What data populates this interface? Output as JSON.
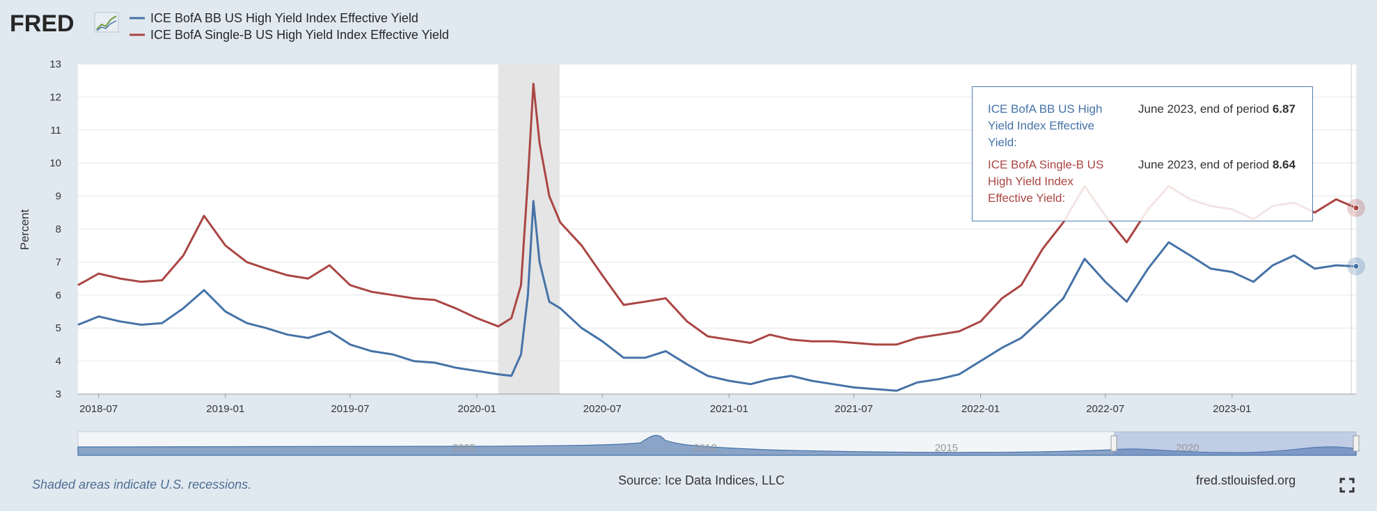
{
  "header": {
    "logo_text": "FRED",
    "logo_icon": "fred-graph-icon"
  },
  "tooltip": {
    "rows": [
      {
        "name": "ICE BofA BB US High Yield Index Effective Yield:",
        "date": "June 2023, end of period",
        "value": "6.87",
        "color": "#4572a7"
      },
      {
        "name": "ICE BofA Single-B US High Yield Index Effective Yield:",
        "date": "June 2023, end of period",
        "value": "8.64",
        "color": "#aa4643"
      }
    ]
  },
  "footer": {
    "recession_note": "Shaded areas indicate U.S. recessions.",
    "source": "Source: Ice Data Indices, LLC",
    "site": "fred.stlouisfed.org",
    "fullscreen_icon": "fullscreen-icon"
  },
  "colors": {
    "bb": "#4572a7",
    "single_b": "#aa4643",
    "recession": "#e5e5e5",
    "background": "#e1e9f0",
    "plot": "#ffffff"
  },
  "chart_data": {
    "type": "line",
    "ylabel": "Percent",
    "ylim": [
      3,
      13
    ],
    "yticks": [
      3,
      4,
      5,
      6,
      7,
      8,
      9,
      10,
      11,
      12,
      13
    ],
    "xlim": [
      "2018-06-01",
      "2023-06-30"
    ],
    "xticks": [
      "2018-07",
      "2019-01",
      "2019-07",
      "2020-01",
      "2020-07",
      "2021-01",
      "2021-07",
      "2022-01",
      "2022-07",
      "2023-01"
    ],
    "grid": true,
    "legend": "top-left",
    "recessions": [
      {
        "start": "2020-02-01",
        "end": "2020-04-30"
      }
    ],
    "navigator": {
      "ticks": [
        "2005",
        "2010",
        "2015",
        "2020"
      ],
      "xlim": [
        "1997-01-01",
        "2023-06-30"
      ],
      "selected": [
        "2018-06-01",
        "2023-06-30"
      ]
    },
    "x": [
      "2018-06-01",
      "2018-07-01",
      "2018-08-01",
      "2018-09-01",
      "2018-10-01",
      "2018-11-01",
      "2018-12-01",
      "2019-01-01",
      "2019-02-01",
      "2019-03-01",
      "2019-04-01",
      "2019-05-01",
      "2019-06-01",
      "2019-07-01",
      "2019-08-01",
      "2019-09-01",
      "2019-10-01",
      "2019-11-01",
      "2019-12-01",
      "2020-01-01",
      "2020-02-01",
      "2020-02-20",
      "2020-03-05",
      "2020-03-15",
      "2020-03-23",
      "2020-04-01",
      "2020-04-15",
      "2020-05-01",
      "2020-06-01",
      "2020-07-01",
      "2020-08-01",
      "2020-09-01",
      "2020-10-01",
      "2020-11-01",
      "2020-12-01",
      "2021-01-01",
      "2021-02-01",
      "2021-03-01",
      "2021-04-01",
      "2021-05-01",
      "2021-06-01",
      "2021-07-01",
      "2021-08-01",
      "2021-09-01",
      "2021-10-01",
      "2021-11-01",
      "2021-12-01",
      "2022-01-01",
      "2022-02-01",
      "2022-03-01",
      "2022-04-01",
      "2022-05-01",
      "2022-06-01",
      "2022-07-01",
      "2022-08-01",
      "2022-09-01",
      "2022-10-01",
      "2022-11-01",
      "2022-12-01",
      "2023-01-01",
      "2023-02-01",
      "2023-03-01",
      "2023-04-01",
      "2023-05-01",
      "2023-06-01",
      "2023-06-30"
    ],
    "series": [
      {
        "name": "ICE BofA BB US High Yield Index Effective Yield",
        "values": [
          5.1,
          5.35,
          5.2,
          5.1,
          5.15,
          5.6,
          6.15,
          5.5,
          5.15,
          5.0,
          4.8,
          4.7,
          4.9,
          4.5,
          4.3,
          4.2,
          4.0,
          3.95,
          3.8,
          3.7,
          3.6,
          3.55,
          4.2,
          6.0,
          8.85,
          7.0,
          5.8,
          5.6,
          5.0,
          4.6,
          4.1,
          4.1,
          4.3,
          3.9,
          3.55,
          3.4,
          3.3,
          3.45,
          3.55,
          3.4,
          3.3,
          3.2,
          3.15,
          3.1,
          3.35,
          3.45,
          3.6,
          4.0,
          4.4,
          4.7,
          5.3,
          5.9,
          7.1,
          6.4,
          5.8,
          6.8,
          7.6,
          7.2,
          6.8,
          6.7,
          6.4,
          6.9,
          7.2,
          6.8,
          6.9,
          6.87
        ]
      },
      {
        "name": "ICE BofA Single-B US High Yield Index Effective Yield",
        "values": [
          6.3,
          6.65,
          6.5,
          6.4,
          6.45,
          7.2,
          8.4,
          7.5,
          7.0,
          6.8,
          6.6,
          6.5,
          6.9,
          6.3,
          6.1,
          6.0,
          5.9,
          5.85,
          5.6,
          5.3,
          5.05,
          5.3,
          6.3,
          9.5,
          12.4,
          10.6,
          9.0,
          8.2,
          7.5,
          6.6,
          5.7,
          5.8,
          5.9,
          5.2,
          4.75,
          4.65,
          4.55,
          4.8,
          4.65,
          4.6,
          4.6,
          4.55,
          4.5,
          4.5,
          4.7,
          4.8,
          4.9,
          5.2,
          5.9,
          6.3,
          7.4,
          8.2,
          9.3,
          8.4,
          7.6,
          8.6,
          9.3,
          8.9,
          8.7,
          8.6,
          8.3,
          8.7,
          8.8,
          8.5,
          8.9,
          8.64
        ]
      }
    ]
  }
}
